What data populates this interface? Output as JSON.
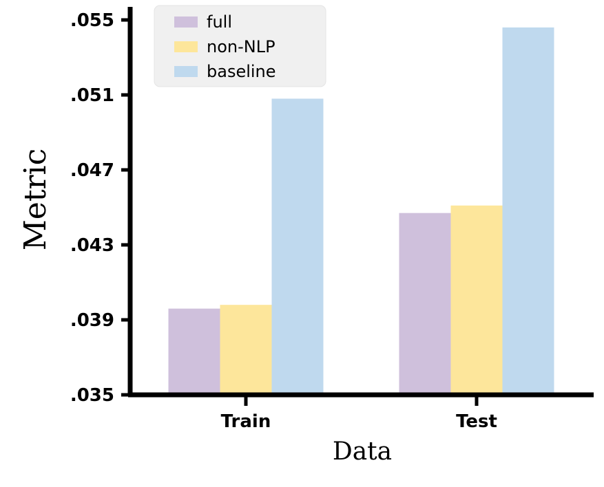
{
  "chart_data": {
    "type": "bar",
    "categories": [
      "Train",
      "Test"
    ],
    "series": [
      {
        "name": "full",
        "values": [
          0.0396,
          0.0447
        ],
        "color": "#cfc0dc"
      },
      {
        "name": "non-NLP",
        "values": [
          0.0398,
          0.0451
        ],
        "color": "#fde69b"
      },
      {
        "name": "baseline",
        "values": [
          0.0508,
          0.0546
        ],
        "color": "#bfd9ee"
      }
    ],
    "xlabel": "Data",
    "ylabel": "Metric",
    "ylim": [
      0.035,
      0.056
    ],
    "yticks": [
      0.035,
      0.039,
      0.043,
      0.047,
      0.051,
      0.055
    ],
    "ytick_labels": [
      ".035",
      ".039",
      ".043",
      ".047",
      ".051",
      ".055"
    ],
    "legend_position": "top-left",
    "grid": false
  }
}
